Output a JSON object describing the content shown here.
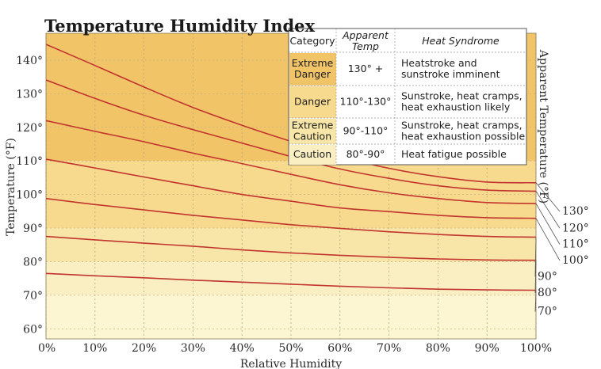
{
  "chart_data": {
    "type": "line",
    "title": "Temperature Humidity Index",
    "xlabel": "Relative Humidity",
    "ylabel": "Temperature (°F)",
    "ylabel_right": "Apparent Temperature (°F)",
    "xlim": [
      0,
      100
    ],
    "ylim": [
      57,
      148
    ],
    "x_ticks": [
      {
        "v": 0,
        "label": "0%"
      },
      {
        "v": 10,
        "label": "10%"
      },
      {
        "v": 20,
        "label": "20%"
      },
      {
        "v": 30,
        "label": "30%"
      },
      {
        "v": 40,
        "label": "40%"
      },
      {
        "v": 50,
        "label": "50%"
      },
      {
        "v": 60,
        "label": "60%"
      },
      {
        "v": 70,
        "label": "70%"
      },
      {
        "v": 80,
        "label": "80%"
      },
      {
        "v": 90,
        "label": "90%"
      },
      {
        "v": 100,
        "label": "100%"
      }
    ],
    "y_ticks": [
      {
        "v": 60,
        "label": "60°"
      },
      {
        "v": 70,
        "label": "70°"
      },
      {
        "v": 80,
        "label": "80°"
      },
      {
        "v": 90,
        "label": "90°"
      },
      {
        "v": 100,
        "label": "100°"
      },
      {
        "v": 110,
        "label": "110°"
      },
      {
        "v": 120,
        "label": "120°"
      },
      {
        "v": 130,
        "label": "130°"
      },
      {
        "v": 140,
        "label": "140°"
      }
    ],
    "grid": true,
    "bands": [
      {
        "from": 57,
        "to": 70,
        "color": "#fdf6d2"
      },
      {
        "from": 70,
        "to": 80,
        "color": "#f9efc3"
      },
      {
        "from": 80,
        "to": 90,
        "color": "#f8e6a8"
      },
      {
        "from": 90,
        "to": 110,
        "color": "#f7da8e"
      },
      {
        "from": 110,
        "to": 148,
        "color": "#f1c468"
      }
    ],
    "line_color": "#c2342e",
    "x": [
      0,
      10,
      20,
      30,
      40,
      50,
      60,
      70,
      80,
      90,
      100
    ],
    "series": [
      {
        "label": "130°",
        "values": [
          144.7,
          138.4,
          132.0,
          125.9,
          120.6,
          115.8,
          111.2,
          107.8,
          105.3,
          103.7,
          103.5
        ]
      },
      {
        "label": "120°",
        "values": [
          134.1,
          128.6,
          123.6,
          119.3,
          115.3,
          111.3,
          107.6,
          104.8,
          102.6,
          101.3,
          101.0
        ]
      },
      {
        "label": "110°",
        "values": [
          122.0,
          118.8,
          115.7,
          112.3,
          109.2,
          106.0,
          102.9,
          100.5,
          98.8,
          97.6,
          97.3
        ]
      },
      {
        "label": "100°",
        "values": [
          110.5,
          107.9,
          105.2,
          102.6,
          100.0,
          98.0,
          96.0,
          94.9,
          93.8,
          93.1,
          92.9
        ]
      },
      {
        "label": "90°",
        "values": [
          98.8,
          97.0,
          95.4,
          93.8,
          92.4,
          91.0,
          89.9,
          88.9,
          88.1,
          87.5,
          87.3
        ]
      },
      {
        "label": "80°",
        "values": [
          87.5,
          86.5,
          85.5,
          84.6,
          83.5,
          82.6,
          81.9,
          81.3,
          80.8,
          80.5,
          80.4
        ]
      },
      {
        "label": "70°",
        "values": [
          76.5,
          75.8,
          75.2,
          74.5,
          73.9,
          73.3,
          72.7,
          72.2,
          71.8,
          71.6,
          71.5
        ]
      }
    ],
    "right_labels": [
      {
        "text": "130°",
        "y": 94.0
      },
      {
        "text": "120°",
        "y": 89.0
      },
      {
        "text": "110°",
        "y": 84.2
      },
      {
        "text": "100°",
        "y": 79.4
      },
      {
        "text": "90°",
        "y": 74.6
      },
      {
        "text": "80°",
        "y": 69.7
      },
      {
        "text": "70°",
        "y": 64.2
      }
    ],
    "legend": {
      "placement": "top-right",
      "headers": [
        "Category",
        "Apparent Temp",
        "Heat Syndrome"
      ],
      "rows": [
        {
          "category": [
            "Extreme",
            "Danger"
          ],
          "temp": "130° +",
          "syndrome": [
            "Heatstroke and",
            "sunstroke imminent"
          ],
          "color": "#f1c468"
        },
        {
          "category": [
            "Danger"
          ],
          "temp": "110°-130°",
          "syndrome": [
            "Sunstroke, heat cramps,",
            "heat exhaustion likely"
          ],
          "color": "#f7da8e"
        },
        {
          "category": [
            "Extreme",
            "Caution"
          ],
          "temp": "90°-110°",
          "syndrome": [
            "Sunstroke, heat cramps,",
            "heat exhaustion possible"
          ],
          "color": "#f8e6a8"
        },
        {
          "category": [
            "Caution"
          ],
          "temp": "80°-90°",
          "syndrome": [
            "Heat fatigue possible"
          ],
          "color": "#f9efc3"
        }
      ]
    }
  }
}
